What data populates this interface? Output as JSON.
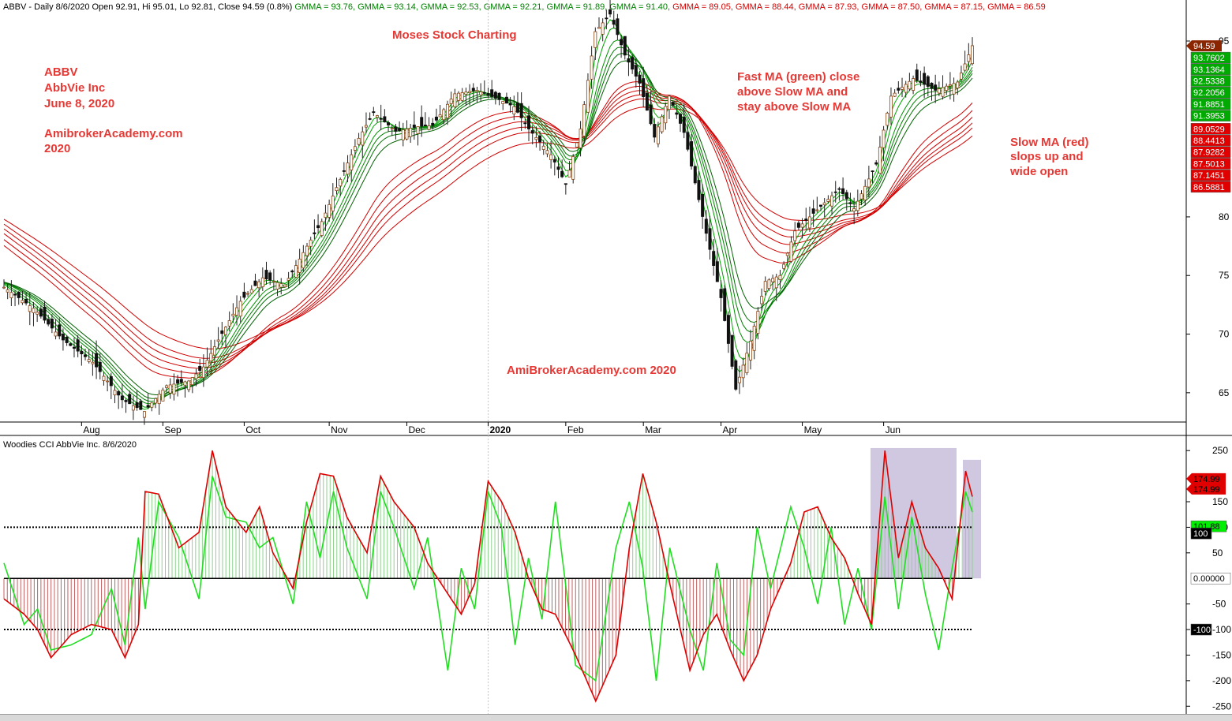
{
  "header": {
    "ticker_line": "ABBV - Daily 8/6/2020 Open 92.91, Hi 95.01, Lo 92.81, Close 94.59 (0.8%)",
    "gmma": [
      {
        "text": "GMMA = 93.76,",
        "color": "#008000"
      },
      {
        "text": "GMMA = 93.14,",
        "color": "#008000"
      },
      {
        "text": "GMMA = 92.53,",
        "color": "#008000"
      },
      {
        "text": "GMMA = 92.21,",
        "color": "#008000"
      },
      {
        "text": "GMMA = 91.89,",
        "color": "#008000"
      },
      {
        "text": "GMMA = 91.40,",
        "color": "#008000"
      },
      {
        "text": "GMMA = 89.05,",
        "color": "#d00000"
      },
      {
        "text": "GMMA = 88.44,",
        "color": "#d00000"
      },
      {
        "text": "GMMA = 87.93,",
        "color": "#d00000"
      },
      {
        "text": "GMMA = 87.50,",
        "color": "#d00000"
      },
      {
        "text": "GMMA = 87.15,",
        "color": "#d00000"
      },
      {
        "text": "GMMA = 86.59",
        "color": "#d00000"
      }
    ]
  },
  "annotations": {
    "title_block": [
      "ABBV",
      "AbbVie Inc",
      "June 8, 2020"
    ],
    "site_block": [
      "AmibrokerAcademy.com",
      "2020"
    ],
    "moses": "Moses Stock Charting",
    "fast_ma": [
      "Fast MA (green) close",
      "above Slow MA and",
      "stay above Slow MA"
    ],
    "slow_ma": [
      "Slow MA (red)",
      "slops up and",
      "wide open"
    ],
    "watermark": "AmiBrokerAcademy.com  2020"
  },
  "cci_header": "Woodies CCI  AbbVie Inc. 8/6/2020",
  "chart_data": [
    {
      "type": "candlestick",
      "title": "ABBV - Daily",
      "x_months": [
        "Aug",
        "Sep",
        "Oct",
        "Nov",
        "Dec",
        "2020",
        "Feb",
        "Mar",
        "Apr",
        "May",
        "Jun"
      ],
      "y_ticks": [
        65,
        70,
        75,
        80,
        95
      ],
      "y_range": [
        62.5,
        98.5
      ],
      "close_series_approx": [
        [
          0,
          74.0
        ],
        [
          8,
          72.2
        ],
        [
          16,
          69.5
        ],
        [
          24,
          67.6
        ],
        [
          32,
          64.4
        ],
        [
          38,
          63.4
        ],
        [
          44,
          65.6
        ],
        [
          50,
          66.0
        ],
        [
          54,
          67.2
        ],
        [
          58,
          69.5
        ],
        [
          64,
          72.8
        ],
        [
          70,
          74.8
        ],
        [
          76,
          74.2
        ],
        [
          82,
          77.5
        ],
        [
          86,
          79.6
        ],
        [
          90,
          82.5
        ],
        [
          96,
          86.7
        ],
        [
          100,
          88.9
        ],
        [
          106,
          87.3
        ],
        [
          112,
          87.7
        ],
        [
          116,
          87.8
        ],
        [
          122,
          90.5
        ],
        [
          128,
          90.8
        ],
        [
          134,
          90.0
        ],
        [
          138,
          89.4
        ],
        [
          142,
          87.5
        ],
        [
          148,
          85.3
        ],
        [
          152,
          82.8
        ],
        [
          156,
          87.5
        ],
        [
          160,
          95.8
        ],
        [
          164,
          97.3
        ],
        [
          168,
          93.8
        ],
        [
          172,
          91.4
        ],
        [
          176,
          86.8
        ],
        [
          180,
          90.3
        ],
        [
          184,
          87.2
        ],
        [
          190,
          78.6
        ],
        [
          194,
          73.1
        ],
        [
          198,
          65.3
        ],
        [
          202,
          69.4
        ],
        [
          206,
          74.5
        ],
        [
          210,
          75.0
        ],
        [
          214,
          78.8
        ],
        [
          220,
          80.6
        ],
        [
          226,
          82.4
        ],
        [
          230,
          80.7
        ],
        [
          236,
          84.5
        ],
        [
          240,
          90.3
        ],
        [
          246,
          91.8
        ],
        [
          252,
          90.8
        ],
        [
          258,
          91.5
        ],
        [
          262,
          94.6
        ]
      ],
      "ma_fast_last": [
        93.7602,
        93.1364,
        92.5338,
        92.2056,
        91.8851,
        91.3953
      ],
      "ma_slow_last": [
        89.0529,
        88.4413,
        87.9282,
        87.5013,
        87.1451,
        86.5881
      ],
      "last_close": 94.59
    },
    {
      "type": "line",
      "title": "Woodies CCI",
      "y_ticks": [
        250,
        150,
        100,
        50,
        -50,
        -100,
        -150,
        -200,
        -250
      ],
      "y_range": [
        -265,
        275
      ],
      "levels": [
        100,
        0,
        -100
      ],
      "cci_series_approx": [
        [
          0,
          -40
        ],
        [
          6,
          -70
        ],
        [
          10,
          -100
        ],
        [
          14,
          -155
        ],
        [
          20,
          -110
        ],
        [
          26,
          -90
        ],
        [
          32,
          -100
        ],
        [
          36,
          -155
        ],
        [
          40,
          -90
        ],
        [
          42,
          170
        ],
        [
          46,
          165
        ],
        [
          52,
          60
        ],
        [
          58,
          90
        ],
        [
          62,
          250
        ],
        [
          66,
          140
        ],
        [
          72,
          90
        ],
        [
          76,
          140
        ],
        [
          80,
          50
        ],
        [
          86,
          -20
        ],
        [
          90,
          110
        ],
        [
          94,
          205
        ],
        [
          98,
          200
        ],
        [
          102,
          120
        ],
        [
          108,
          50
        ],
        [
          112,
          200
        ],
        [
          116,
          150
        ],
        [
          122,
          100
        ],
        [
          126,
          30
        ],
        [
          132,
          -30
        ],
        [
          136,
          -70
        ],
        [
          140,
          -10
        ],
        [
          144,
          190
        ],
        [
          148,
          150
        ],
        [
          152,
          90
        ],
        [
          156,
          0
        ],
        [
          160,
          -60
        ],
        [
          164,
          -70
        ],
        [
          170,
          -150
        ],
        [
          176,
          -240
        ],
        [
          182,
          -150
        ],
        [
          186,
          60
        ],
        [
          190,
          205
        ],
        [
          194,
          110
        ],
        [
          198,
          -10
        ],
        [
          204,
          -180
        ],
        [
          208,
          -110
        ],
        [
          212,
          -70
        ],
        [
          216,
          -140
        ],
        [
          220,
          -200
        ],
        [
          224,
          -150
        ],
        [
          228,
          -60
        ],
        [
          234,
          30
        ],
        [
          238,
          130
        ],
        [
          242,
          140
        ],
        [
          246,
          80
        ],
        [
          250,
          40
        ],
        [
          254,
          -30
        ],
        [
          258,
          -90
        ],
        [
          262,
          250
        ],
        [
          266,
          40
        ],
        [
          270,
          150
        ],
        [
          274,
          60
        ],
        [
          278,
          20
        ],
        [
          282,
          -40
        ],
        [
          286,
          210
        ],
        [
          288,
          160
        ]
      ],
      "signal_series_approx": [
        [
          0,
          30
        ],
        [
          6,
          -90
        ],
        [
          10,
          -60
        ],
        [
          14,
          -140
        ],
        [
          20,
          -130
        ],
        [
          26,
          -110
        ],
        [
          32,
          -20
        ],
        [
          36,
          -130
        ],
        [
          40,
          80
        ],
        [
          42,
          -60
        ],
        [
          46,
          150
        ],
        [
          52,
          80
        ],
        [
          58,
          -40
        ],
        [
          62,
          200
        ],
        [
          66,
          120
        ],
        [
          72,
          110
        ],
        [
          76,
          60
        ],
        [
          80,
          80
        ],
        [
          86,
          -50
        ],
        [
          90,
          150
        ],
        [
          94,
          40
        ],
        [
          98,
          170
        ],
        [
          102,
          60
        ],
        [
          108,
          -40
        ],
        [
          112,
          170
        ],
        [
          116,
          100
        ],
        [
          122,
          -20
        ],
        [
          126,
          80
        ],
        [
          132,
          -180
        ],
        [
          136,
          20
        ],
        [
          140,
          -60
        ],
        [
          144,
          170
        ],
        [
          148,
          100
        ],
        [
          152,
          -130
        ],
        [
          156,
          40
        ],
        [
          160,
          -80
        ],
        [
          164,
          150
        ],
        [
          170,
          -170
        ],
        [
          176,
          -200
        ],
        [
          182,
          60
        ],
        [
          186,
          150
        ],
        [
          190,
          20
        ],
        [
          194,
          -200
        ],
        [
          198,
          60
        ],
        [
          204,
          -100
        ],
        [
          208,
          -180
        ],
        [
          212,
          30
        ],
        [
          216,
          -120
        ],
        [
          220,
          -150
        ],
        [
          224,
          100
        ],
        [
          228,
          -20
        ],
        [
          234,
          140
        ],
        [
          238,
          60
        ],
        [
          242,
          -50
        ],
        [
          246,
          100
        ],
        [
          250,
          -90
        ],
        [
          254,
          20
        ],
        [
          258,
          -100
        ],
        [
          262,
          160
        ],
        [
          266,
          -60
        ],
        [
          270,
          120
        ],
        [
          274,
          -30
        ],
        [
          278,
          -140
        ],
        [
          282,
          20
        ],
        [
          286,
          170
        ],
        [
          288,
          130
        ]
      ],
      "right_labels": [
        {
          "text": "174.99",
          "bg": "#e00000",
          "fg": "#000"
        },
        {
          "text": "174.99",
          "bg": "#e00000",
          "fg": "#000"
        },
        {
          "text": "101.88",
          "bg": "#00ee00",
          "fg": "#000"
        },
        {
          "text": "100",
          "bg": "#000000",
          "fg": "#fff"
        },
        {
          "text": "0.00000",
          "bg": "#ffffff",
          "fg": "#000"
        },
        {
          "text": "-100",
          "bg": "#000000",
          "fg": "#fff"
        }
      ]
    }
  ],
  "right_badges": {
    "last": {
      "text": "94.59",
      "bg": "#8b2500",
      "fg": "#fff"
    },
    "fast": [
      {
        "text": "93.7602",
        "bg": "#00aa00",
        "fg": "#fff"
      },
      {
        "text": "93.1364",
        "bg": "#00aa00",
        "fg": "#fff"
      },
      {
        "text": "92.5338",
        "bg": "#00aa00",
        "fg": "#fff"
      },
      {
        "text": "92.2056",
        "bg": "#00aa00",
        "fg": "#fff"
      },
      {
        "text": "91.8851",
        "bg": "#00aa00",
        "fg": "#fff"
      },
      {
        "text": "91.3953",
        "bg": "#00aa00",
        "fg": "#fff"
      }
    ],
    "slow": [
      {
        "text": "89.0529",
        "bg": "#e00000",
        "fg": "#fff"
      },
      {
        "text": "88.4413",
        "bg": "#e00000",
        "fg": "#fff"
      },
      {
        "text": "87.9282",
        "bg": "#e00000",
        "fg": "#fff"
      },
      {
        "text": "87.5013",
        "bg": "#e00000",
        "fg": "#fff"
      },
      {
        "text": "87.1451",
        "bg": "#e00000",
        "fg": "#fff"
      },
      {
        "text": "86.5881",
        "bg": "#e00000",
        "fg": "#fff"
      }
    ]
  }
}
